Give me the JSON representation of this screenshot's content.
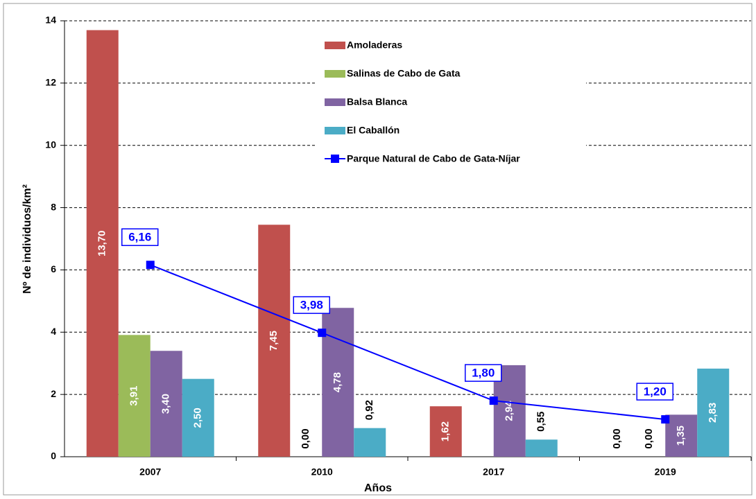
{
  "chart_data": {
    "type": "bar",
    "categories": [
      "2007",
      "2010",
      "2017",
      "2019"
    ],
    "series": [
      {
        "name": "Amoladeras",
        "color": "#c0504d",
        "values": [
          13.7,
          7.45,
          1.62,
          0.0
        ],
        "value_labels": [
          "13,70",
          "7,45",
          "1,62",
          "0,00"
        ]
      },
      {
        "name": "Salinas de Cabo de Gata",
        "color": "#9bbb59",
        "values": [
          3.91,
          0.0,
          null,
          0.0
        ],
        "value_labels": [
          "3,91",
          "0,00",
          null,
          "0,00"
        ]
      },
      {
        "name": "Balsa Blanca",
        "color": "#8064a2",
        "values": [
          3.4,
          4.78,
          2.94,
          1.35
        ],
        "value_labels": [
          "3,40",
          "4,78",
          "2,94",
          "1,35"
        ]
      },
      {
        "name": "El Caballón",
        "color": "#4bacc6",
        "values": [
          2.5,
          0.92,
          0.55,
          2.83
        ],
        "value_labels": [
          "2,50",
          "0,92",
          "0,55",
          "2,83"
        ]
      },
      {
        "name": "Parque Natural de Cabo de Gata-Níjar",
        "color": "#0000ff",
        "type": "line",
        "values": [
          6.16,
          3.98,
          1.8,
          1.2
        ],
        "value_labels": [
          "6,16",
          "3,98",
          "1,80",
          "1,20"
        ]
      }
    ],
    "xlabel": "Años",
    "ylabel": "Nº de individuos/km²",
    "ylim": [
      0,
      14
    ],
    "yticks": [
      0,
      2,
      4,
      6,
      8,
      10,
      12,
      14
    ],
    "grid": true
  }
}
